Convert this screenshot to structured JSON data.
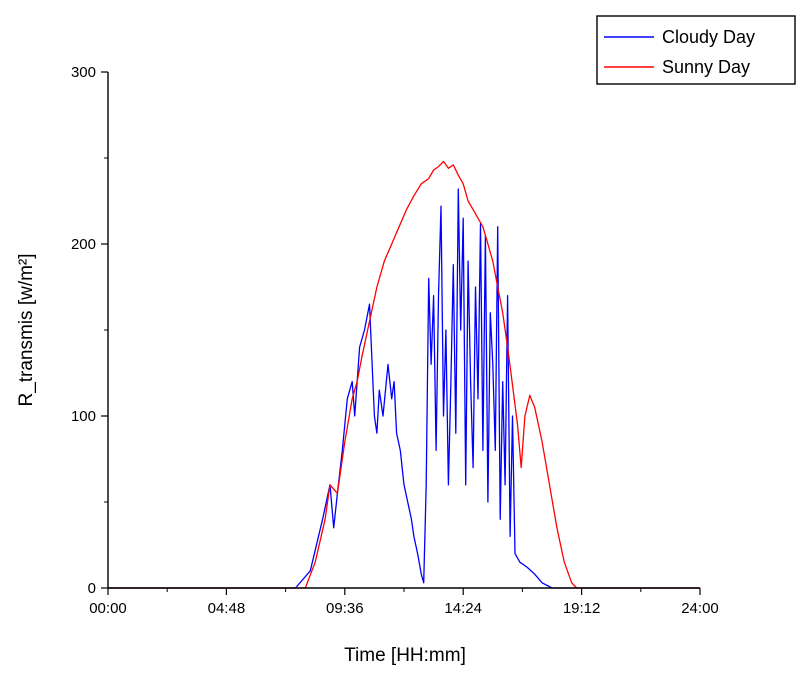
{
  "chart_data": {
    "type": "line",
    "xlabel": "Time [HH:mm]",
    "ylabel": "R_transmis [w/m²]",
    "x_tick_labels": [
      "00:00",
      "04:48",
      "09:36",
      "14:24",
      "19:12",
      "24:00"
    ],
    "x_ticks_hours": [
      0,
      4.8,
      9.6,
      14.4,
      19.2,
      24
    ],
    "xlim": [
      0,
      24
    ],
    "ylim": [
      0,
      300
    ],
    "y_ticks": [
      0,
      100,
      200,
      300
    ],
    "legend_position": "top-right",
    "grid": false,
    "series": [
      {
        "name": "Cloudy Day",
        "color": "#0000ff",
        "points": [
          [
            0,
            0
          ],
          [
            7.6,
            0
          ],
          [
            8.2,
            10
          ],
          [
            8.7,
            40
          ],
          [
            9.0,
            60
          ],
          [
            9.15,
            35
          ],
          [
            9.3,
            55
          ],
          [
            9.5,
            80
          ],
          [
            9.7,
            110
          ],
          [
            9.9,
            120
          ],
          [
            10.0,
            100
          ],
          [
            10.2,
            140
          ],
          [
            10.4,
            150
          ],
          [
            10.6,
            165
          ],
          [
            10.8,
            100
          ],
          [
            10.9,
            90
          ],
          [
            11.0,
            115
          ],
          [
            11.15,
            100
          ],
          [
            11.35,
            130
          ],
          [
            11.5,
            110
          ],
          [
            11.6,
            120
          ],
          [
            11.7,
            90
          ],
          [
            11.85,
            80
          ],
          [
            12.0,
            60
          ],
          [
            12.15,
            50
          ],
          [
            12.3,
            40
          ],
          [
            12.4,
            30
          ],
          [
            12.55,
            20
          ],
          [
            12.7,
            8
          ],
          [
            12.8,
            3
          ],
          [
            12.9,
            60
          ],
          [
            13.0,
            180
          ],
          [
            13.1,
            130
          ],
          [
            13.2,
            170
          ],
          [
            13.3,
            80
          ],
          [
            13.4,
            170
          ],
          [
            13.5,
            222
          ],
          [
            13.6,
            100
          ],
          [
            13.7,
            150
          ],
          [
            13.8,
            60
          ],
          [
            13.9,
            120
          ],
          [
            14.0,
            188
          ],
          [
            14.1,
            90
          ],
          [
            14.2,
            232
          ],
          [
            14.3,
            150
          ],
          [
            14.4,
            215
          ],
          [
            14.5,
            60
          ],
          [
            14.6,
            190
          ],
          [
            14.7,
            120
          ],
          [
            14.8,
            70
          ],
          [
            14.9,
            175
          ],
          [
            15.0,
            110
          ],
          [
            15.1,
            212
          ],
          [
            15.2,
            80
          ],
          [
            15.3,
            205
          ],
          [
            15.4,
            50
          ],
          [
            15.5,
            160
          ],
          [
            15.6,
            130
          ],
          [
            15.7,
            80
          ],
          [
            15.8,
            210
          ],
          [
            15.9,
            40
          ],
          [
            16.0,
            120
          ],
          [
            16.1,
            60
          ],
          [
            16.2,
            170
          ],
          [
            16.3,
            30
          ],
          [
            16.4,
            100
          ],
          [
            16.5,
            20
          ],
          [
            16.7,
            15
          ],
          [
            17.0,
            12
          ],
          [
            17.3,
            8
          ],
          [
            17.6,
            3
          ],
          [
            18.0,
            0
          ],
          [
            24,
            0
          ]
        ]
      },
      {
        "name": "Sunny Day",
        "color": "#ff0000",
        "points": [
          [
            0,
            0
          ],
          [
            8.0,
            0
          ],
          [
            8.4,
            15
          ],
          [
            8.8,
            40
          ],
          [
            9.0,
            60
          ],
          [
            9.3,
            55
          ],
          [
            9.6,
            85
          ],
          [
            9.9,
            110
          ],
          [
            10.1,
            120
          ],
          [
            10.3,
            135
          ],
          [
            10.6,
            155
          ],
          [
            10.9,
            175
          ],
          [
            11.2,
            190
          ],
          [
            11.5,
            200
          ],
          [
            11.8,
            210
          ],
          [
            12.1,
            220
          ],
          [
            12.4,
            228
          ],
          [
            12.7,
            235
          ],
          [
            13.0,
            238
          ],
          [
            13.2,
            243
          ],
          [
            13.4,
            245
          ],
          [
            13.6,
            248
          ],
          [
            13.8,
            244
          ],
          [
            14.0,
            246
          ],
          [
            14.2,
            240
          ],
          [
            14.4,
            235
          ],
          [
            14.6,
            225
          ],
          [
            14.8,
            220
          ],
          [
            15.0,
            215
          ],
          [
            15.2,
            210
          ],
          [
            15.4,
            200
          ],
          [
            15.6,
            190
          ],
          [
            15.8,
            175
          ],
          [
            16.0,
            160
          ],
          [
            16.2,
            140
          ],
          [
            16.4,
            118
          ],
          [
            16.6,
            95
          ],
          [
            16.75,
            70
          ],
          [
            16.9,
            100
          ],
          [
            17.1,
            112
          ],
          [
            17.3,
            105
          ],
          [
            17.6,
            85
          ],
          [
            17.9,
            60
          ],
          [
            18.2,
            35
          ],
          [
            18.5,
            15
          ],
          [
            18.8,
            3
          ],
          [
            19.0,
            0
          ],
          [
            24,
            0
          ]
        ]
      }
    ]
  }
}
